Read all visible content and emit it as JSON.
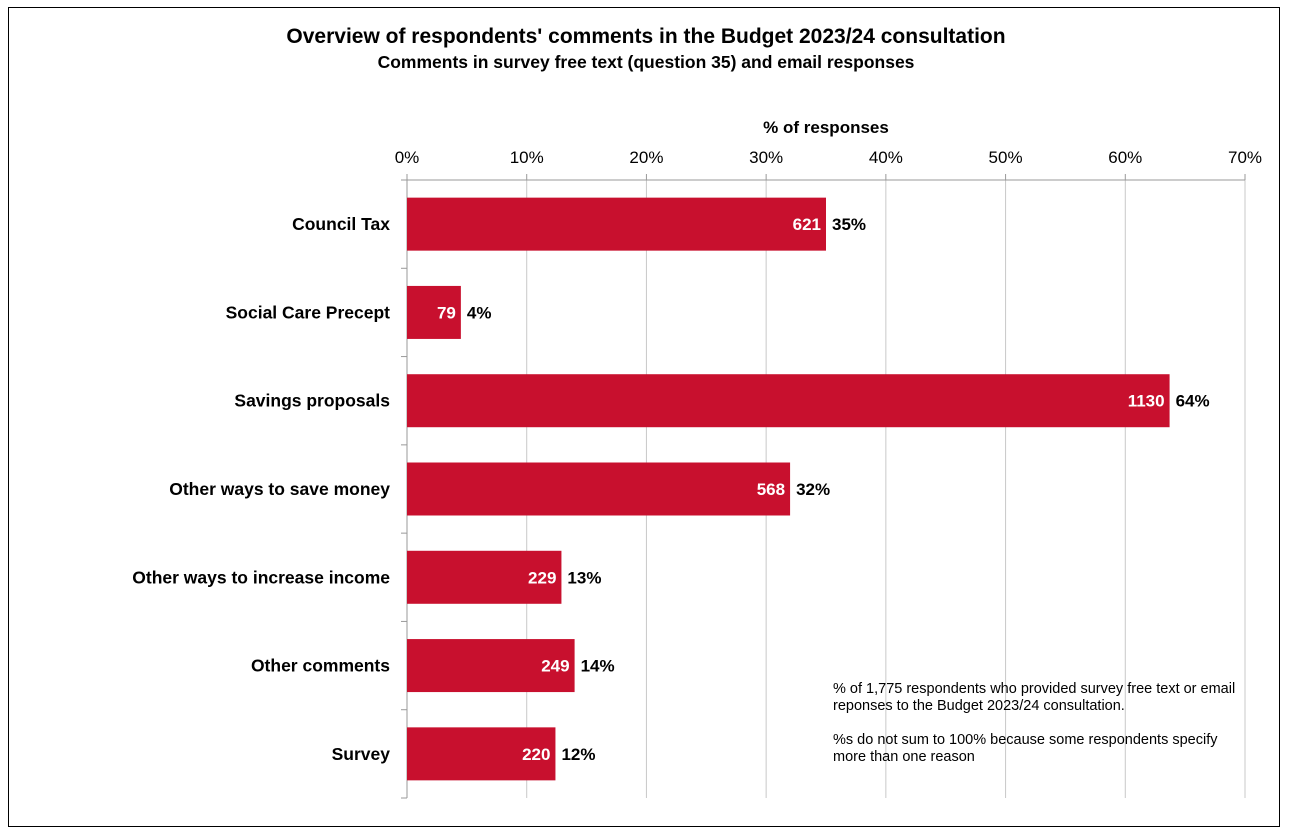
{
  "chart_data": {
    "type": "bar",
    "orientation": "horizontal",
    "title": "Overview of respondents' comments in the Budget 2023/24 consultation",
    "subtitle": "Comments in survey free text (question 35) and email responses",
    "xlabel": "% of responses",
    "xlim": [
      0,
      70
    ],
    "xticks": [
      0,
      10,
      20,
      30,
      40,
      50,
      60,
      70
    ],
    "xtick_labels": [
      "0%",
      "10%",
      "20%",
      "30%",
      "40%",
      "50%",
      "60%",
      "70%"
    ],
    "grid": "vertical",
    "bar_color": "#c8102e",
    "categories": [
      "Council Tax",
      "Social Care Precept",
      "Savings proposals",
      "Other ways to save money",
      "Other ways to increase income",
      "Other comments",
      "Survey"
    ],
    "counts": [
      621,
      79,
      1130,
      568,
      229,
      249,
      220
    ],
    "count_labels": [
      "621",
      "79",
      "1130",
      "568",
      "229",
      "249",
      "220"
    ],
    "values": [
      35,
      4.5,
      63.7,
      32,
      12.9,
      14,
      12.4
    ],
    "value_labels": [
      "35%",
      "4%",
      "64%",
      "32%",
      "13%",
      "14%",
      "12%"
    ],
    "notes": [
      "% of 1,775 respondents who provided survey free text or email reponses to the Budget 2023/24 consultation.",
      "%s do not sum to 100% because some respondents specify more than one reason"
    ]
  }
}
